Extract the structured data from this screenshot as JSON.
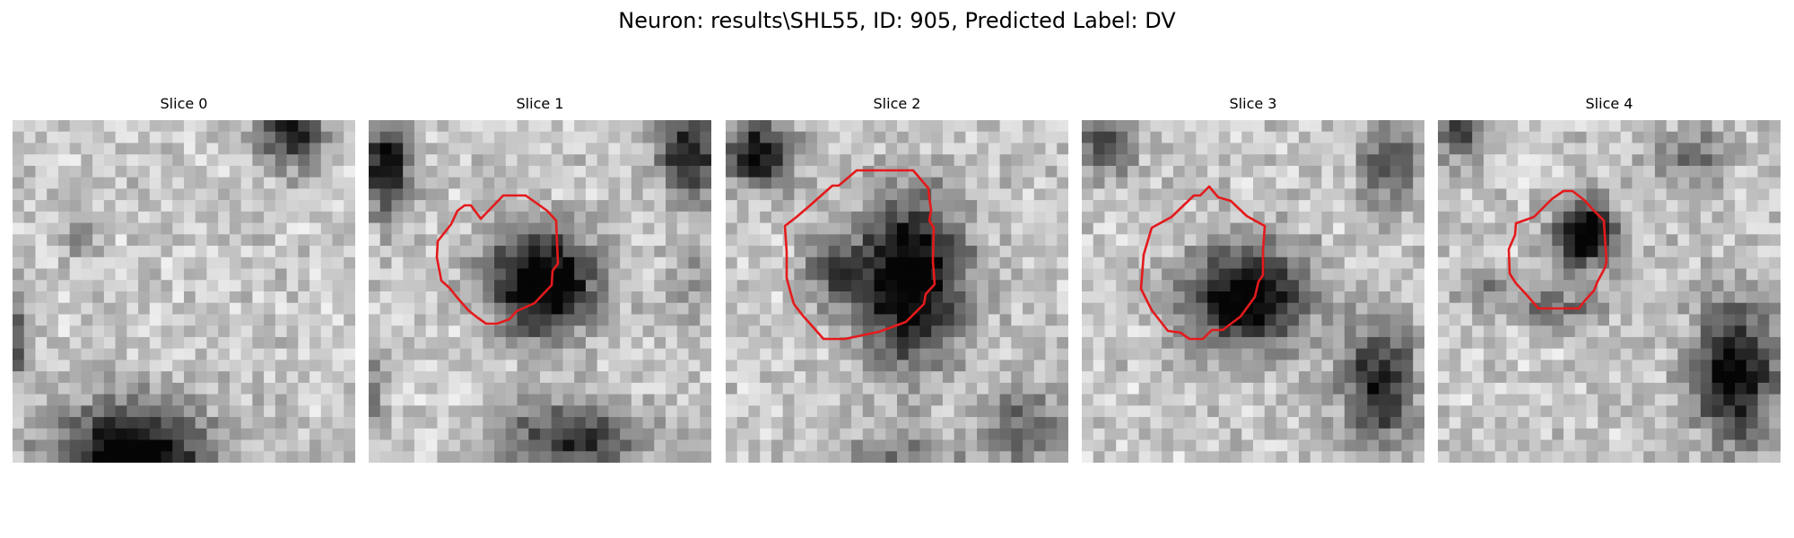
{
  "figure": {
    "title": "Neuron: results\\SHL55, ID: 905, Predicted Label: DV",
    "contour_color": "#e41a1c",
    "colormap": "gray"
  },
  "slices": [
    {
      "label": "Slice 0",
      "has_contour": false
    },
    {
      "label": "Slice 1",
      "has_contour": true
    },
    {
      "label": "Slice 2",
      "has_contour": true
    },
    {
      "label": "Slice 3",
      "has_contour": true
    },
    {
      "label": "Slice 4",
      "has_contour": true
    }
  ]
}
